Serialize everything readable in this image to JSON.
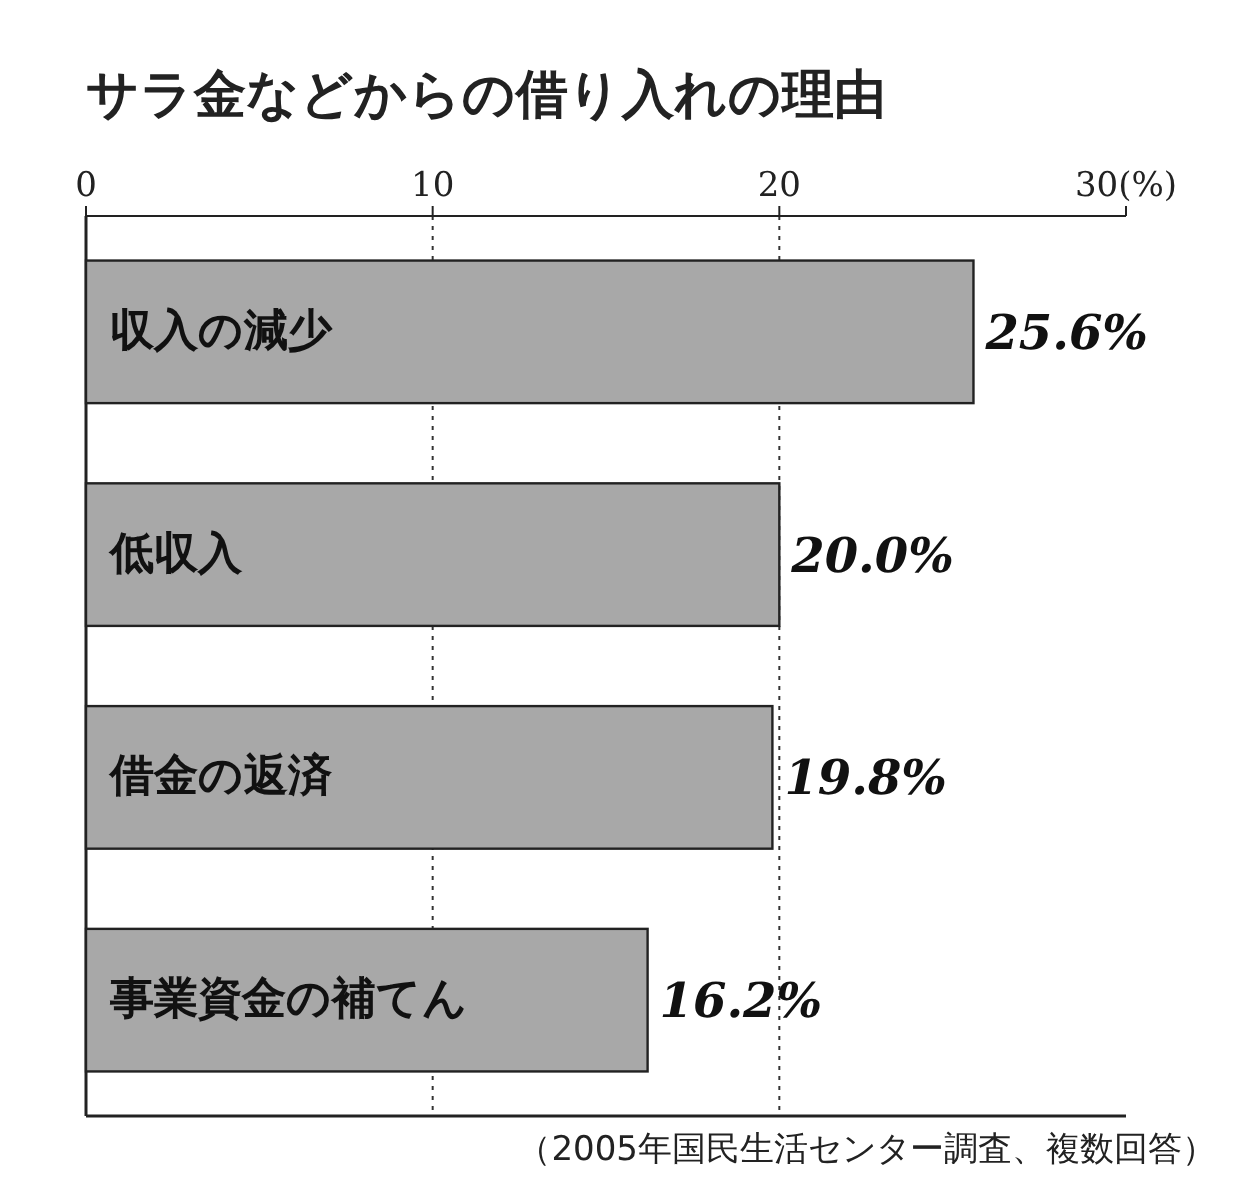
{
  "chart_data": {
    "type": "bar",
    "orientation": "horizontal",
    "title": "サラ金などからの借り入れの理由",
    "categories": [
      "収入の減少",
      "低収入",
      "借金の返済",
      "事業資金の補てん"
    ],
    "values": [
      25.6,
      20.0,
      19.8,
      16.2
    ],
    "value_labels": [
      "25.6%",
      "20.0%",
      "19.8%",
      "16.2%"
    ],
    "color": "#a8a8a8",
    "xlim": [
      0,
      30
    ],
    "xticks": [
      0,
      10,
      20,
      {
        "value": 30,
        "label": "30(%)"
      }
    ],
    "grid": "x",
    "line_style": "dotted",
    "annotations": [
      "（2005年国民生活センター調査、複数回答）"
    ]
  }
}
